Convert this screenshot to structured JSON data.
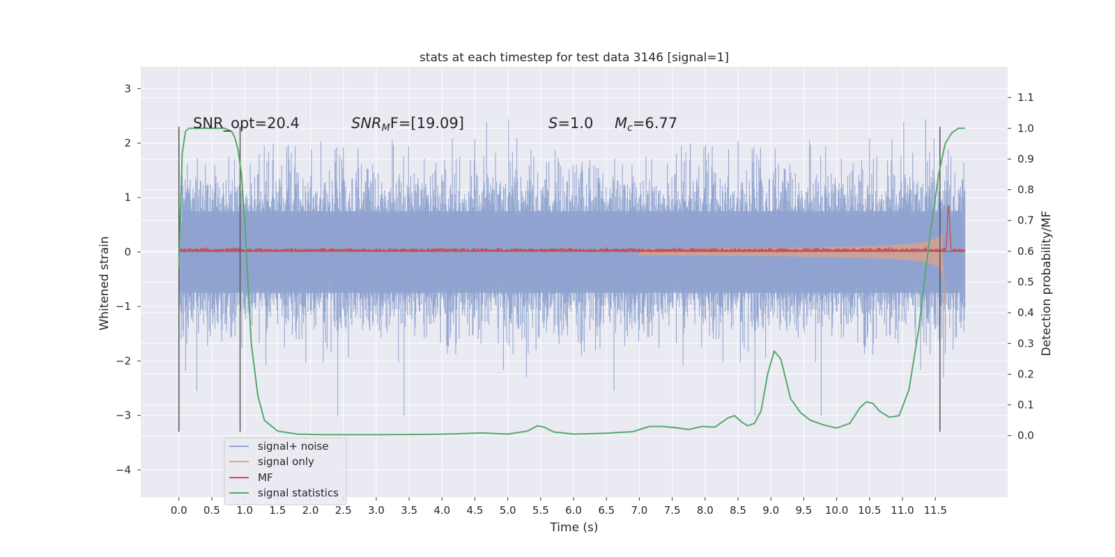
{
  "chart_data": {
    "type": "line",
    "title": "stats at each timestep for test data 3146 [signal=1]",
    "xlabel": "Time (s)",
    "ylabel_left": "Whitened strain",
    "ylabel_right": "Detection probability/MF",
    "xlim": [
      -0.58,
      12.6
    ],
    "ylim_left": [
      -4.5,
      3.4
    ],
    "ylim_right": [
      -0.2,
      1.2
    ],
    "x_ticks": [
      "0.0",
      "0.5",
      "1.0",
      "1.5",
      "2.0",
      "2.5",
      "3.0",
      "3.5",
      "4.0",
      "4.5",
      "5.0",
      "5.5",
      "6.0",
      "6.5",
      "7.0",
      "7.5",
      "8.0",
      "8.5",
      "9.0",
      "9.5",
      "10.0",
      "10.5",
      "11.0",
      "11.5"
    ],
    "y_ticks_left": [
      "3",
      "2",
      "1",
      "0",
      "−1",
      "−2",
      "−3",
      "−4"
    ],
    "y_ticks_right": [
      "1.1",
      "1.0",
      "0.9",
      "0.8",
      "0.7",
      "0.6",
      "0.5",
      "0.4",
      "0.3",
      "0.2",
      "0.1",
      "0.0"
    ],
    "grid": true,
    "legend_position": "lower-left",
    "annotations": {
      "snr_opt": "SNR_opt=20.4",
      "snr_mf_sym": "SNR",
      "snr_mf_sub": "M",
      "snr_mf_tail": "F=[19.09]",
      "s_sym": "S",
      "s_tail": "=1.0",
      "mc_sym": "M",
      "mc_sub": "c",
      "mc_tail": "=6.77"
    },
    "vertical_markers_x": [
      0.0,
      0.93,
      11.57
    ],
    "series": [
      {
        "name": "signal+ noise",
        "color": "#8fa3cf",
        "axis": "left",
        "envelope_amplitude": 1.3,
        "x_range": [
          0.0,
          11.95
        ]
      },
      {
        "name": "signal only",
        "color": "#e2a283",
        "axis": "left",
        "chirp_end_time": 11.7
      },
      {
        "name": "MF",
        "color": "#c44e52",
        "axis": "right",
        "baseline": 0.6,
        "peak": [
          11.7,
          0.75
        ]
      },
      {
        "name": "signal statistics",
        "color": "#55a868",
        "axis": "right",
        "x": [
          0.0,
          0.05,
          0.1,
          0.15,
          0.2,
          0.3,
          0.5,
          0.7,
          0.8,
          0.85,
          0.9,
          0.95,
          1.0,
          1.05,
          1.1,
          1.2,
          1.3,
          1.5,
          1.8,
          2.2,
          3.0,
          3.8,
          4.2,
          4.6,
          5.0,
          5.3,
          5.45,
          5.55,
          5.7,
          6.0,
          6.5,
          6.9,
          7.15,
          7.35,
          7.55,
          7.75,
          7.95,
          8.15,
          8.35,
          8.45,
          8.55,
          8.65,
          8.75,
          8.85,
          8.95,
          9.05,
          9.15,
          9.3,
          9.45,
          9.6,
          9.8,
          10.0,
          10.2,
          10.35,
          10.45,
          10.55,
          10.65,
          10.8,
          10.95,
          11.1,
          11.25,
          11.4,
          11.55,
          11.65,
          11.75,
          11.85,
          11.95
        ],
        "y": [
          0.55,
          0.92,
          0.99,
          1.0,
          1.0,
          1.0,
          1.0,
          1.0,
          0.99,
          0.97,
          0.93,
          0.85,
          0.7,
          0.5,
          0.3,
          0.13,
          0.05,
          0.015,
          0.005,
          0.003,
          0.003,
          0.004,
          0.006,
          0.009,
          0.005,
          0.015,
          0.032,
          0.028,
          0.012,
          0.005,
          0.008,
          0.013,
          0.03,
          0.03,
          0.026,
          0.02,
          0.03,
          0.028,
          0.058,
          0.065,
          0.045,
          0.032,
          0.04,
          0.08,
          0.2,
          0.275,
          0.25,
          0.12,
          0.075,
          0.05,
          0.035,
          0.025,
          0.04,
          0.09,
          0.11,
          0.105,
          0.08,
          0.06,
          0.065,
          0.15,
          0.35,
          0.62,
          0.85,
          0.95,
          0.985,
          1.0,
          1.0
        ]
      }
    ]
  }
}
